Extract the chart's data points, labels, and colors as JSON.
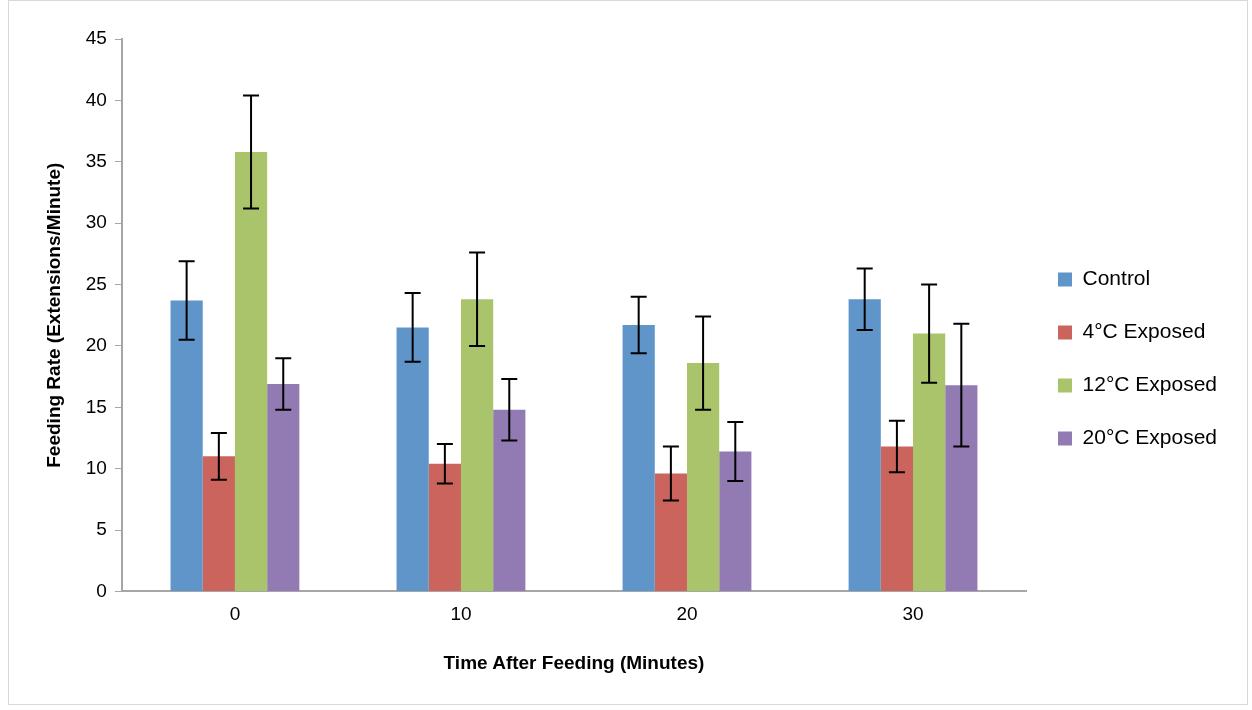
{
  "chart_data": {
    "type": "bar",
    "xlabel": "Time After Feeding (Minutes)",
    "ylabel": "Feeding Rate (Extensions/Minute)",
    "categories": [
      "0",
      "10",
      "20",
      "30"
    ],
    "series": [
      {
        "name": "Control",
        "color": "#5f95c9",
        "values": [
          23.7,
          21.5,
          21.7,
          23.8
        ],
        "errors": [
          3.2,
          2.8,
          2.3,
          2.5
        ]
      },
      {
        "name": "4°C Exposed",
        "color": "#cc645e",
        "values": [
          11.0,
          10.4,
          9.6,
          11.8
        ],
        "errors": [
          1.9,
          1.6,
          2.2,
          2.1
        ]
      },
      {
        "name": "12°C Exposed",
        "color": "#a9c46b",
        "values": [
          35.8,
          23.8,
          18.6,
          21.0
        ],
        "errors": [
          4.6,
          3.8,
          3.8,
          4.0
        ]
      },
      {
        "name": "20°C Exposed",
        "color": "#927ab2",
        "values": [
          16.9,
          14.8,
          11.4,
          16.8
        ],
        "errors": [
          2.1,
          2.5,
          2.4,
          5.0
        ]
      }
    ],
    "ylim": [
      0,
      45
    ],
    "yticks": [
      0,
      5,
      10,
      15,
      20,
      25,
      30,
      35,
      40,
      45
    ],
    "grid": false,
    "legend": "right"
  }
}
